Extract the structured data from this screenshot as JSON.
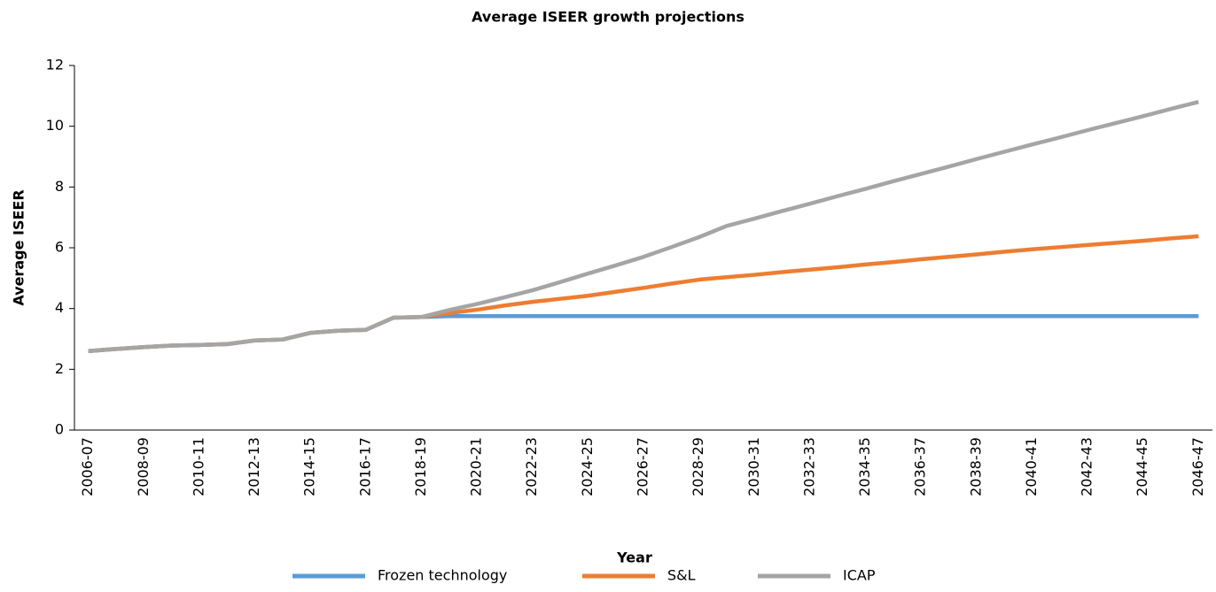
{
  "chart_data": {
    "type": "line",
    "title": "Average ISEER growth projections",
    "xlabel": "Year",
    "ylabel": "Average ISEER",
    "categories": [
      "2006-07",
      null,
      "2008-09",
      null,
      "2010-11",
      null,
      "2012-13",
      null,
      "2014-15",
      null,
      "2016-17",
      null,
      "2018-19",
      null,
      "2020-21",
      null,
      "2022-23",
      null,
      "2024-25",
      null,
      "2026-27",
      null,
      "2028-29",
      null,
      "2030-31",
      null,
      "2032-33",
      null,
      "2034-35",
      null,
      "2036-37",
      null,
      "2038-39",
      null,
      "2040-41",
      null,
      "2042-43",
      null,
      "2044-45",
      null,
      "2046-47"
    ],
    "series": [
      {
        "name": "Frozen technology",
        "color": "#5b9bd5",
        "values": [
          2.6,
          2.67,
          2.73,
          2.78,
          2.8,
          2.83,
          2.95,
          2.98,
          3.2,
          3.27,
          3.3,
          3.7,
          3.72,
          3.75,
          3.75,
          3.75,
          3.75,
          3.75,
          3.75,
          3.75,
          3.75,
          3.75,
          3.75,
          3.75,
          3.75,
          3.75,
          3.75,
          3.75,
          3.75,
          3.75,
          3.75,
          3.75,
          3.75,
          3.75,
          3.75,
          3.75,
          3.75,
          3.75,
          3.75,
          3.75,
          3.75
        ]
      },
      {
        "name": "S&L",
        "color": "#ed7d31",
        "values": [
          2.6,
          2.67,
          2.73,
          2.78,
          2.8,
          2.83,
          2.95,
          2.98,
          3.2,
          3.27,
          3.3,
          3.7,
          3.72,
          3.85,
          3.96,
          4.1,
          4.22,
          4.32,
          4.42,
          4.55,
          4.68,
          4.82,
          4.95,
          5.03,
          5.11,
          5.2,
          5.28,
          5.36,
          5.45,
          5.53,
          5.62,
          5.7,
          5.78,
          5.87,
          5.95,
          6.02,
          6.09,
          6.16,
          6.23,
          6.31,
          6.38
        ]
      },
      {
        "name": "ICAP",
        "color": "#a5a5a5",
        "values": [
          2.6,
          2.67,
          2.73,
          2.78,
          2.8,
          2.83,
          2.95,
          2.98,
          3.2,
          3.27,
          3.3,
          3.7,
          3.72,
          3.95,
          4.15,
          4.37,
          4.6,
          4.87,
          5.15,
          5.42,
          5.7,
          6.02,
          6.35,
          6.72,
          6.96,
          7.21,
          7.45,
          7.7,
          7.94,
          8.19,
          8.43,
          8.67,
          8.92,
          9.16,
          9.4,
          9.63,
          9.87,
          10.1,
          10.33,
          10.57,
          10.8
        ]
      }
    ],
    "ylim": [
      0,
      12
    ],
    "yticks": [
      0,
      2,
      4,
      6,
      8,
      10,
      12
    ],
    "grid": false,
    "legend": "bottom"
  }
}
